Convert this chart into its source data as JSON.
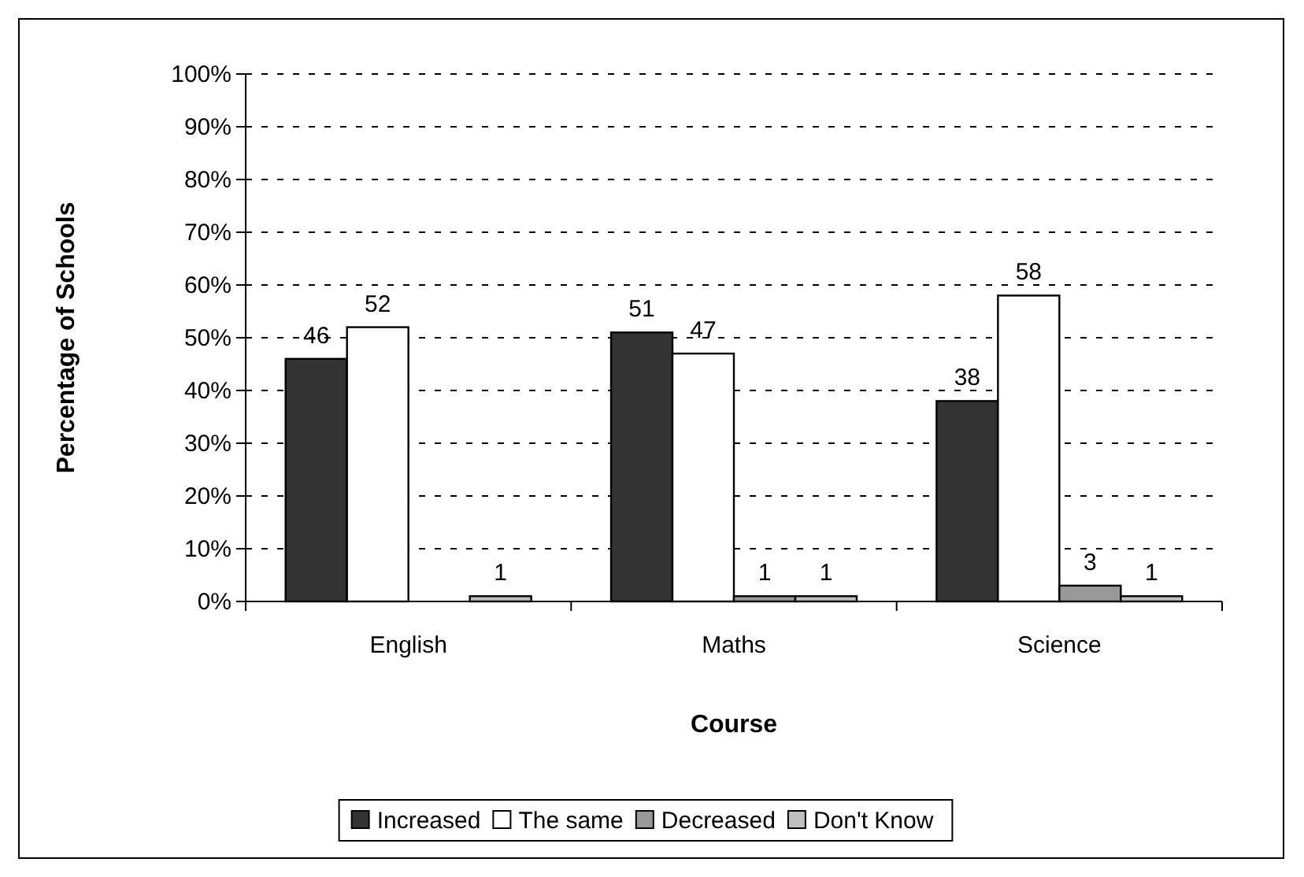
{
  "chart_data": {
    "type": "bar",
    "xlabel": "Course",
    "ylabel": "Percentage of Schools",
    "categories": [
      "English",
      "Maths",
      "Science"
    ],
    "series": [
      {
        "name": "Increased",
        "color": "#333333",
        "values": [
          46,
          51,
          38
        ],
        "value_labels": [
          "46",
          "51",
          "38"
        ]
      },
      {
        "name": "The same",
        "color": "#ffffff",
        "values": [
          52,
          47,
          58
        ],
        "value_labels": [
          "52",
          "47",
          "58"
        ]
      },
      {
        "name": "Decreased",
        "color": "#999999",
        "values": [
          null,
          1,
          3
        ],
        "value_labels": [
          null,
          "1",
          "3"
        ]
      },
      {
        "name": "Don't Know",
        "color": "#c0c0c0",
        "values": [
          1,
          1,
          1
        ],
        "value_labels": [
          "1",
          "1",
          "1"
        ]
      }
    ],
    "ylim": [
      0,
      100
    ],
    "yticks": [
      {
        "value": 0,
        "label": "0%"
      },
      {
        "value": 10,
        "label": "10%"
      },
      {
        "value": 20,
        "label": "20%"
      },
      {
        "value": 30,
        "label": "30%"
      },
      {
        "value": 40,
        "label": "40%"
      },
      {
        "value": 50,
        "label": "50%"
      },
      {
        "value": 60,
        "label": "60%"
      },
      {
        "value": 70,
        "label": "70%"
      },
      {
        "value": 80,
        "label": "80%"
      },
      {
        "value": 90,
        "label": "90%"
      },
      {
        "value": 100,
        "label": "100%"
      }
    ],
    "grid": "y",
    "legend": "bottom"
  }
}
